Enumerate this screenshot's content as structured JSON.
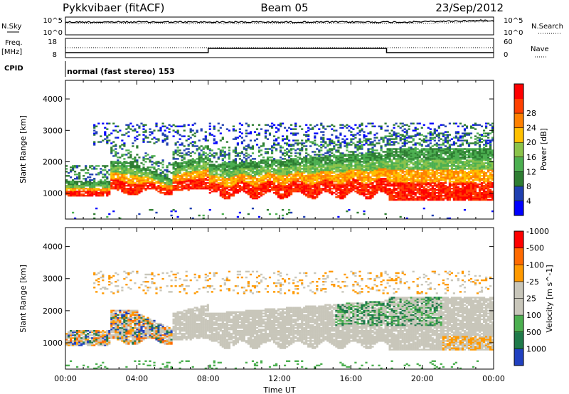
{
  "header": {
    "station": "Pykkvibaer (fitACF)",
    "beam": "Beam 05",
    "date": "23/Sep/2012"
  },
  "strips": {
    "nsky_label": "N.Sky",
    "nsky_ticks": [
      "10^5",
      "10^0"
    ],
    "nsearch_label": "N.Search",
    "nsearch_ticks": [
      "10^5",
      "10^0"
    ],
    "freq_label": "Freq.",
    "freq_unit": "[MHz]",
    "freq_ticks": [
      "18",
      "8"
    ],
    "nave_label": "Nave",
    "nave_ticks": [
      "60",
      "0"
    ],
    "cpid_label": "CPID",
    "cpid_text": "normal (fast stereo) 153"
  },
  "chart_data": [
    {
      "type": "heatmap",
      "name_hint": "power",
      "ylabel": "Slant Range [km]",
      "yticks": [
        1000,
        2000,
        3000,
        4000
      ],
      "ylim": [
        180,
        4590
      ],
      "xlim": [
        0,
        24
      ],
      "colorbar_title": "Power [dB]",
      "colorbar_ticks": [
        "4",
        "8",
        "12",
        "16",
        "20",
        "24",
        "28"
      ],
      "colorscale": [
        "#0000ff",
        "#1f3fb0",
        "#2e7d32",
        "#4caf50",
        "#8bc34a",
        "#ffc000",
        "#ff8000",
        "#ff4000",
        "#ff0000"
      ],
      "echo_bands": [
        {
          "t": [
            0.0,
            2.5
          ],
          "r": [
            850,
            1350
          ],
          "level": "strong"
        },
        {
          "t": [
            2.5,
            5.5
          ],
          "r": [
            900,
            2000
          ],
          "level": "mixed"
        },
        {
          "t": [
            6.0,
            10.0
          ],
          "r": [
            900,
            1800
          ],
          "level": "strong"
        },
        {
          "t": [
            10.0,
            18.0
          ],
          "r": [
            1100,
            2500
          ],
          "level": "strong"
        },
        {
          "t": [
            18.0,
            24.0
          ],
          "r": [
            800,
            2500
          ],
          "level": "strong"
        },
        {
          "t": [
            1.5,
            24.0
          ],
          "r": [
            2500,
            3200
          ],
          "level": "weak"
        }
      ]
    },
    {
      "type": "heatmap",
      "name_hint": "velocity",
      "ylabel": "Slant Range [km]",
      "yticks": [
        1000,
        2000,
        3000,
        4000
      ],
      "ylim": [
        180,
        4590
      ],
      "xlim": [
        0,
        24
      ],
      "xticks": [
        "00:00",
        "04:00",
        "08:00",
        "12:00",
        "16:00",
        "20:00",
        "00:00"
      ],
      "xlabel": "Time UT",
      "colorbar_title": "Velocity [m s^-1]",
      "colorbar_ticks": [
        "1000",
        "500",
        "100",
        "25",
        "-25",
        "-100",
        "-500",
        "-1000"
      ],
      "colorscale": [
        "#2040c0",
        "#1f7a4a",
        "#4caf50",
        "#c8c6ba",
        "#c8c6ba",
        "#ff9900",
        "#ff6a00",
        "#ff0000"
      ]
    }
  ]
}
